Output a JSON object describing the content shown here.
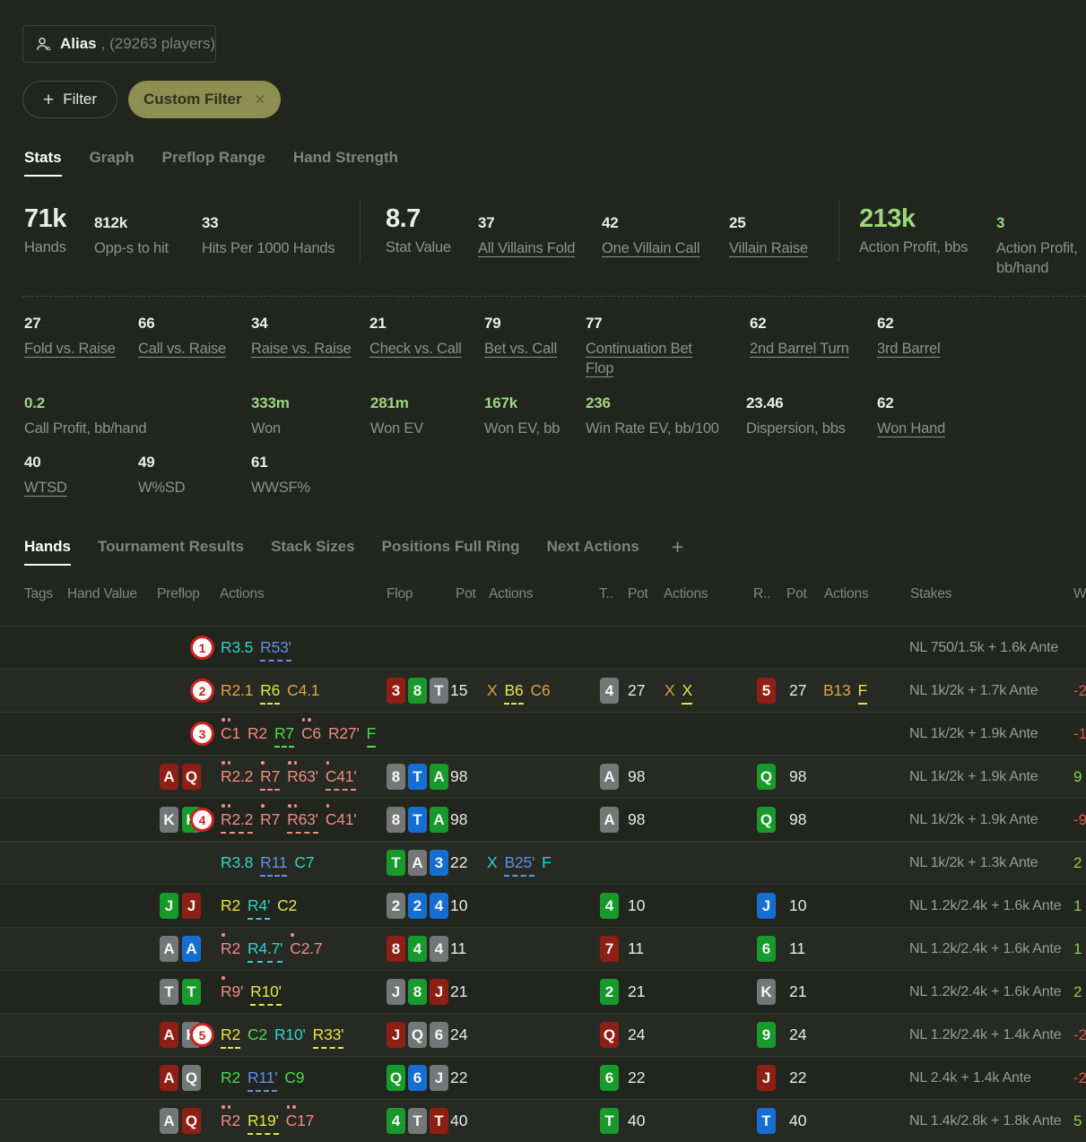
{
  "search": {
    "name": "Alias",
    "count": ", (29263 players)"
  },
  "filters": {
    "add_label": "Filter",
    "chips": [
      {
        "label": "Custom Filter"
      }
    ]
  },
  "icons": {
    "plus": "+",
    "close": "✕",
    "players": "players-icon"
  },
  "colors": {
    "background": "#21251d",
    "accent_green": "#9ed67d",
    "chip_olive": "#8d8e52",
    "negative": "#e0534e",
    "positive": "#86d24c",
    "action_cyan": "#2fd3cd",
    "action_blue": "#5e8fe8",
    "action_orange": "#e0a23e",
    "action_yellow": "#e6e545",
    "action_pink": "#ee8b84",
    "action_green": "#4cdb4f",
    "card_gray": "#757678",
    "card_green": "#17992b",
    "card_blue": "#156fd3",
    "card_red": "#8e1f14",
    "annotation_red": "#d02020"
  },
  "tabs": [
    {
      "label": "Stats",
      "active": true
    },
    {
      "label": "Graph",
      "active": false
    },
    {
      "label": "Preflop Range",
      "active": false
    },
    {
      "label": "Hand Strength",
      "active": false
    }
  ],
  "stats": {
    "hands": {
      "value": "71k",
      "label": "Hands",
      "em": true
    },
    "opps": {
      "value": "812k",
      "label": "Opp-s to hit"
    },
    "hits": {
      "value": "33",
      "label": "Hits Per 1000 Hands"
    },
    "stat_value": {
      "value": "8.7",
      "label": "Stat Value",
      "em": true
    },
    "all_villains_fold": {
      "value": "37",
      "label": "All Villains Fold",
      "link": true
    },
    "one_villain_call": {
      "value": "42",
      "label": "One Villain Call",
      "link": true
    },
    "villain_raise": {
      "value": "25",
      "label": "Villain Raise",
      "link": true
    },
    "action_profit_bbs": {
      "value": "213k",
      "label": "Action Profit, bbs",
      "em": true,
      "green": true
    },
    "action_profit_bbhand": {
      "value": "3",
      "label": "Action Profit, bb/hand",
      "green": true
    },
    "fold_vs_raise": {
      "value": "27",
      "label": "Fold vs. Raise",
      "link": true
    },
    "call_vs_raise": {
      "value": "66",
      "label": "Call vs. Raise",
      "link": true
    },
    "raise_vs_raise": {
      "value": "34",
      "label": "Raise vs. Raise",
      "link": true
    },
    "check_vs_call": {
      "value": "21",
      "label": "Check vs. Call",
      "link": true
    },
    "bet_vs_call": {
      "value": "79",
      "label": "Bet vs. Call",
      "link": true
    },
    "cbet_flop": {
      "value": "77",
      "label": "Continuation Bet Flop",
      "link": true
    },
    "second_barrel": {
      "value": "62",
      "label": "2nd Barrel Turn",
      "link": true
    },
    "third_barrel": {
      "value": "62",
      "label": "3rd Barrel",
      "link": true
    },
    "call_profit": {
      "value": "0.2",
      "label": "Call Profit, bb/hand",
      "green": true
    },
    "won": {
      "value": "333m",
      "label": "Won",
      "green": true
    },
    "won_ev": {
      "value": "281m",
      "label": "Won EV",
      "green": true
    },
    "won_ev_bb": {
      "value": "167k",
      "label": "Won EV, bb",
      "green": true
    },
    "win_rate_ev": {
      "value": "236",
      "label": "Win Rate EV, bb/100",
      "green": true
    },
    "dispersion": {
      "value": "23.46",
      "label": "Dispersion, bbs"
    },
    "won_hand": {
      "value": "62",
      "label": "Won Hand",
      "link": true
    },
    "wtsd": {
      "value": "40",
      "label": "WTSD",
      "link": true
    },
    "wsd": {
      "value": "49",
      "label": "W%SD"
    },
    "wwsf": {
      "value": "61",
      "label": "WWSF%"
    }
  },
  "table": {
    "tabs": [
      {
        "label": "Hands",
        "active": true
      },
      {
        "label": "Tournament Results",
        "active": false
      },
      {
        "label": "Stack Sizes",
        "active": false
      },
      {
        "label": "Positions Full Ring",
        "active": false
      },
      {
        "label": "Next Actions",
        "active": false
      }
    ],
    "headers": [
      "Tags",
      "Hand Value",
      "Preflop",
      "Actions",
      "Flop",
      "Pot",
      "Actions",
      "T..",
      "Pot",
      "Actions",
      "R..",
      "Pot",
      "Actions",
      "Stakes",
      "W"
    ],
    "rows": [
      {
        "circle": "1",
        "hole": [],
        "pre": [
          {
            "t": "R3.5",
            "c": "cyan"
          },
          {
            "t": "R53'",
            "c": "blue",
            "u": "d"
          }
        ],
        "flop": null,
        "turn": null,
        "river": null,
        "stakes": "NL 750/1.5k + 1.6k Ante",
        "won": null
      },
      {
        "circle": "2",
        "hole": [],
        "pre": [
          {
            "t": "R2.1",
            "c": "orange"
          },
          {
            "t": "R6",
            "c": "yellow",
            "u": "d"
          },
          {
            "t": "C4.1",
            "c": "orange"
          }
        ],
        "flop": {
          "cards": [
            {
              "r": "3",
              "s": "red"
            },
            {
              "r": "8",
              "s": "green"
            },
            {
              "r": "T",
              "s": "gray"
            }
          ],
          "pot": "15",
          "acts": [
            {
              "t": "X",
              "c": "orange"
            },
            {
              "t": "B6",
              "c": "yellow",
              "u": "d"
            },
            {
              "t": "C6",
              "c": "orange"
            }
          ]
        },
        "turn": {
          "card": {
            "r": "4",
            "s": "gray"
          },
          "pot": "27",
          "acts": [
            {
              "t": "X",
              "c": "orange"
            },
            {
              "t": "X",
              "c": "yellow",
              "u": "s"
            }
          ]
        },
        "river": {
          "card": {
            "r": "5",
            "s": "red"
          },
          "pot": "27",
          "acts": [
            {
              "t": "B13",
              "c": "orange"
            },
            {
              "t": "F",
              "c": "yellow",
              "u": "s"
            }
          ]
        },
        "stakes": "NL 1k/2k + 1.7k Ante",
        "won": {
          "t": "-2",
          "c": "neg"
        }
      },
      {
        "circle": "3",
        "hole": [],
        "pre": [
          {
            "t": "C1",
            "c": "pink",
            "d": 2
          },
          {
            "t": "R2",
            "c": "pink"
          },
          {
            "t": "R7",
            "c": "green",
            "u": "d"
          },
          {
            "t": "C6",
            "c": "pink",
            "d": 2
          },
          {
            "t": "R27'",
            "c": "pink"
          },
          {
            "t": "F",
            "c": "green",
            "u": "s"
          }
        ],
        "flop": null,
        "turn": null,
        "river": null,
        "stakes": "NL 1k/2k + 1.9k Ante",
        "won": {
          "t": "-1",
          "c": "neg"
        }
      },
      {
        "circle": null,
        "hole": [
          {
            "r": "A",
            "s": "red"
          },
          {
            "r": "Q",
            "s": "red"
          }
        ],
        "pre": [
          {
            "t": "R2.2",
            "c": "pink",
            "d": 2
          },
          {
            "t": "R7",
            "c": "pink",
            "u": "d",
            "d": 1
          },
          {
            "t": "R63'",
            "c": "pink",
            "d": 2
          },
          {
            "t": "C41'",
            "c": "pink",
            "u": "d",
            "d": 1
          }
        ],
        "flop": {
          "cards": [
            {
              "r": "8",
              "s": "gray"
            },
            {
              "r": "T",
              "s": "blue"
            },
            {
              "r": "A",
              "s": "green"
            }
          ],
          "pot": "98",
          "acts": []
        },
        "turn": {
          "card": {
            "r": "A",
            "s": "gray"
          },
          "pot": "98",
          "acts": []
        },
        "river": {
          "card": {
            "r": "Q",
            "s": "green"
          },
          "pot": "98",
          "acts": []
        },
        "stakes": "NL 1k/2k + 1.9k Ante",
        "won": {
          "t": "9",
          "c": "pos"
        }
      },
      {
        "circle": "4",
        "hole": [
          {
            "r": "K",
            "s": "gray"
          },
          {
            "r": "K",
            "s": "green"
          }
        ],
        "pre": [
          {
            "t": "R2.2",
            "c": "pink",
            "u": "d",
            "d": 2
          },
          {
            "t": "R7",
            "c": "pink",
            "d": 1
          },
          {
            "t": "R63'",
            "c": "pink",
            "u": "d",
            "d": 2
          },
          {
            "t": "C41'",
            "c": "pink",
            "d": 1
          }
        ],
        "flop": {
          "cards": [
            {
              "r": "8",
              "s": "gray"
            },
            {
              "r": "T",
              "s": "blue"
            },
            {
              "r": "A",
              "s": "green"
            }
          ],
          "pot": "98",
          "acts": []
        },
        "turn": {
          "card": {
            "r": "A",
            "s": "gray"
          },
          "pot": "98",
          "acts": []
        },
        "river": {
          "card": {
            "r": "Q",
            "s": "green"
          },
          "pot": "98",
          "acts": []
        },
        "stakes": "NL 1k/2k + 1.9k Ante",
        "won": {
          "t": "-9",
          "c": "neg"
        }
      },
      {
        "circle": null,
        "hole": [],
        "pre": [
          {
            "t": "R3.8",
            "c": "cyan"
          },
          {
            "t": "R11",
            "c": "blue",
            "u": "d"
          },
          {
            "t": "C7",
            "c": "cyan"
          }
        ],
        "flop": {
          "cards": [
            {
              "r": "T",
              "s": "green"
            },
            {
              "r": "A",
              "s": "gray"
            },
            {
              "r": "3",
              "s": "blue"
            }
          ],
          "pot": "22",
          "acts": [
            {
              "t": "X",
              "c": "cyan"
            },
            {
              "t": "B25'",
              "c": "blue",
              "u": "d"
            },
            {
              "t": "F",
              "c": "cyan"
            }
          ]
        },
        "turn": null,
        "river": null,
        "stakes": "NL 1k/2k + 1.3k Ante",
        "won": {
          "t": "2",
          "c": "pos"
        }
      },
      {
        "circle": null,
        "hole": [
          {
            "r": "J",
            "s": "green"
          },
          {
            "r": "J",
            "s": "red"
          }
        ],
        "pre": [
          {
            "t": "R2",
            "c": "yellow"
          },
          {
            "t": "R4'",
            "c": "cyan",
            "u": "d"
          },
          {
            "t": "C2",
            "c": "yellow"
          }
        ],
        "flop": {
          "cards": [
            {
              "r": "2",
              "s": "gray"
            },
            {
              "r": "2",
              "s": "blue"
            },
            {
              "r": "4",
              "s": "blue"
            }
          ],
          "pot": "10",
          "acts": []
        },
        "turn": {
          "card": {
            "r": "4",
            "s": "green"
          },
          "pot": "10",
          "acts": []
        },
        "river": {
          "card": {
            "r": "J",
            "s": "blue"
          },
          "pot": "10",
          "acts": []
        },
        "stakes": "NL 1.2k/2.4k + 1.6k Ante",
        "won": {
          "t": "1",
          "c": "pos"
        }
      },
      {
        "circle": null,
        "hole": [
          {
            "r": "A",
            "s": "gray"
          },
          {
            "r": "A",
            "s": "blue"
          }
        ],
        "pre": [
          {
            "t": "R2",
            "c": "pink",
            "d": 1
          },
          {
            "t": "R4.7'",
            "c": "cyan",
            "u": "d"
          },
          {
            "t": "C2.7",
            "c": "pink",
            "d": 1
          }
        ],
        "flop": {
          "cards": [
            {
              "r": "8",
              "s": "red"
            },
            {
              "r": "4",
              "s": "green"
            },
            {
              "r": "4",
              "s": "gray"
            }
          ],
          "pot": "11",
          "acts": []
        },
        "turn": {
          "card": {
            "r": "7",
            "s": "red"
          },
          "pot": "11",
          "acts": []
        },
        "river": {
          "card": {
            "r": "6",
            "s": "green"
          },
          "pot": "11",
          "acts": []
        },
        "stakes": "NL 1.2k/2.4k + 1.6k Ante",
        "won": {
          "t": "1",
          "c": "pos"
        }
      },
      {
        "circle": null,
        "hole": [
          {
            "r": "T",
            "s": "gray"
          },
          {
            "r": "T",
            "s": "green"
          }
        ],
        "pre": [
          {
            "t": "R9'",
            "c": "pink",
            "d": 1
          },
          {
            "t": "R10'",
            "c": "yellow",
            "u": "d"
          }
        ],
        "flop": {
          "cards": [
            {
              "r": "J",
              "s": "gray"
            },
            {
              "r": "8",
              "s": "green"
            },
            {
              "r": "J",
              "s": "red"
            }
          ],
          "pot": "21",
          "acts": []
        },
        "turn": {
          "card": {
            "r": "2",
            "s": "green"
          },
          "pot": "21",
          "acts": []
        },
        "river": {
          "card": {
            "r": "K",
            "s": "gray"
          },
          "pot": "21",
          "acts": []
        },
        "stakes": "NL 1.2k/2.4k + 1.6k Ante",
        "won": {
          "t": "2",
          "c": "pos"
        }
      },
      {
        "circle": "5",
        "hole": [
          {
            "r": "A",
            "s": "red"
          },
          {
            "r": "K",
            "s": "gray"
          }
        ],
        "pre": [
          {
            "t": "R2",
            "c": "yellow",
            "u": "d"
          },
          {
            "t": "C2",
            "c": "green"
          },
          {
            "t": "R10'",
            "c": "cyan"
          },
          {
            "t": "R33'",
            "c": "yellow",
            "u": "d"
          }
        ],
        "flop": {
          "cards": [
            {
              "r": "J",
              "s": "red"
            },
            {
              "r": "Q",
              "s": "gray"
            },
            {
              "r": "6",
              "s": "gray"
            }
          ],
          "pot": "24",
          "acts": []
        },
        "turn": {
          "card": {
            "r": "Q",
            "s": "red"
          },
          "pot": "24",
          "acts": []
        },
        "river": {
          "card": {
            "r": "9",
            "s": "green"
          },
          "pot": "24",
          "acts": []
        },
        "stakes": "NL 1.2k/2.4k + 1.4k Ante",
        "won": {
          "t": "-2",
          "c": "neg"
        }
      },
      {
        "circle": null,
        "hole": [
          {
            "r": "A",
            "s": "red"
          },
          {
            "r": "Q",
            "s": "gray"
          }
        ],
        "pre": [
          {
            "t": "R2",
            "c": "green"
          },
          {
            "t": "R11'",
            "c": "blue",
            "u": "d"
          },
          {
            "t": "C9",
            "c": "green"
          }
        ],
        "flop": {
          "cards": [
            {
              "r": "Q",
              "s": "green"
            },
            {
              "r": "6",
              "s": "blue"
            },
            {
              "r": "J",
              "s": "gray"
            }
          ],
          "pot": "22",
          "acts": []
        },
        "turn": {
          "card": {
            "r": "6",
            "s": "green"
          },
          "pot": "22",
          "acts": []
        },
        "river": {
          "card": {
            "r": "J",
            "s": "red"
          },
          "pot": "22",
          "acts": []
        },
        "stakes": "NL 2.4k + 1.4k Ante",
        "won": {
          "t": "-2",
          "c": "neg"
        }
      },
      {
        "circle": null,
        "hole": [
          {
            "r": "A",
            "s": "gray"
          },
          {
            "r": "Q",
            "s": "red"
          }
        ],
        "pre": [
          {
            "t": "R2",
            "c": "pink",
            "d": 2
          },
          {
            "t": "R19'",
            "c": "yellow",
            "u": "d"
          },
          {
            "t": "C17",
            "c": "pink",
            "d": 2
          }
        ],
        "flop": {
          "cards": [
            {
              "r": "4",
              "s": "green"
            },
            {
              "r": "T",
              "s": "gray"
            },
            {
              "r": "T",
              "s": "red"
            }
          ],
          "pot": "40",
          "acts": []
        },
        "turn": {
          "card": {
            "r": "T",
            "s": "green"
          },
          "pot": "40",
          "acts": []
        },
        "river": {
          "card": {
            "r": "T",
            "s": "blue"
          },
          "pot": "40",
          "acts": []
        },
        "stakes": "NL 1.4k/2.8k + 1.8k Ante",
        "won": {
          "t": "5",
          "c": "pos"
        }
      }
    ]
  }
}
